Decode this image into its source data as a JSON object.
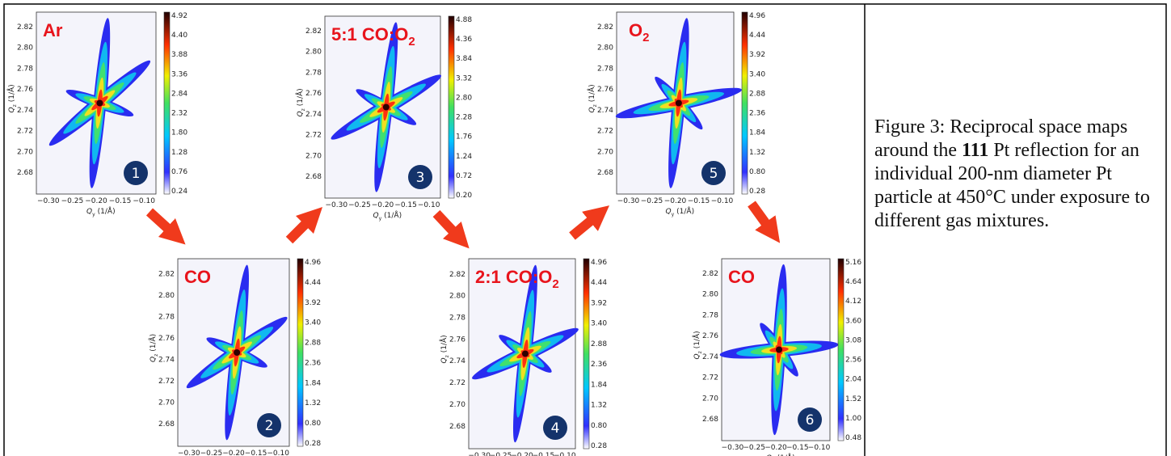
{
  "axes": {
    "yticks": [
      "2.82",
      "2.80",
      "2.78",
      "2.76",
      "2.74",
      "2.72",
      "2.70",
      "2.68"
    ],
    "xticks": [
      "−0.30",
      "−0.25",
      "−0.20",
      "−0.15",
      "−0.10"
    ],
    "xlabel": {
      "q": "Q",
      "sub": "y",
      "unit": "(1/Å)"
    },
    "ylabel": {
      "q": "Q",
      "sub": "z",
      "unit": "(1/Å)"
    }
  },
  "panels": [
    {
      "gas": {
        "text": "Ar"
      },
      "number": "1",
      "colorbar": [
        "4.92",
        "4.40",
        "3.88",
        "3.36",
        "2.84",
        "2.32",
        "1.80",
        "1.28",
        "0.76",
        "0.24"
      ]
    },
    {
      "gas": {
        "text": "CO"
      },
      "number": "2",
      "colorbar": [
        "4.96",
        "4.44",
        "3.92",
        "3.40",
        "2.88",
        "2.36",
        "1.84",
        "1.32",
        "0.80",
        "0.28"
      ]
    },
    {
      "gas": {
        "text": "5:1 CO:O",
        "sub": "2"
      },
      "number": "3",
      "colorbar": [
        "4.88",
        "4.36",
        "3.84",
        "3.32",
        "2.80",
        "2.28",
        "1.76",
        "1.24",
        "0.72",
        "0.20"
      ]
    },
    {
      "gas": {
        "text": "2:1 CO:O",
        "sub": "2"
      },
      "number": "4",
      "colorbar": [
        "4.96",
        "4.44",
        "3.92",
        "3.40",
        "2.88",
        "2.36",
        "1.84",
        "1.32",
        "0.80",
        "0.28"
      ]
    },
    {
      "gas": {
        "text": "O",
        "sub": "2"
      },
      "number": "5",
      "colorbar": [
        "4.96",
        "4.44",
        "3.92",
        "3.40",
        "2.88",
        "2.36",
        "1.84",
        "1.32",
        "0.80",
        "0.28"
      ]
    },
    {
      "gas": {
        "text": "CO"
      },
      "number": "6",
      "colorbar": [
        "5.16",
        "4.64",
        "4.12",
        "3.60",
        "3.08",
        "2.56",
        "2.04",
        "1.52",
        "1.00",
        "0.48"
      ]
    }
  ],
  "caption": {
    "before": "Figure 3: Reciprocal space maps around the ",
    "bold": "111",
    "after": " Pt reflection for an individual 200-nm diameter Pt particle at 450°C under exposure to different gas mixtures."
  }
}
